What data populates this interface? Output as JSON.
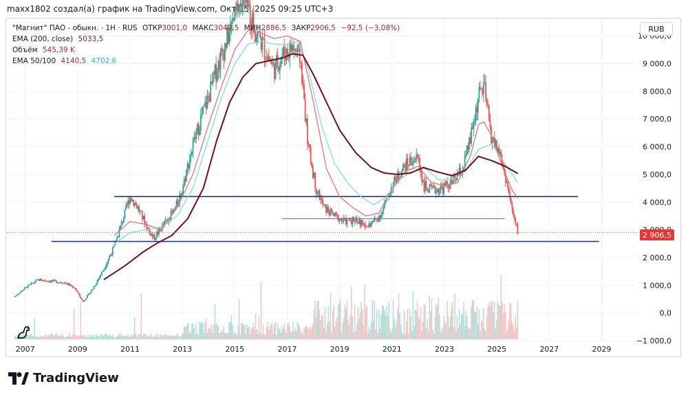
{
  "header": {
    "text": "maxx1802 создал(а) график на TradingView.com, Окт 15, 2025 09:25 UTC+3"
  },
  "legend": {
    "symbol_line": "\"Магнит\" ПАО - обыкн. · 1Н · RUS",
    "open_label": "ОТКР",
    "open_value": "3001,0",
    "high_label": "МАКС",
    "high_value": "3040,5",
    "low_label": "МИН",
    "low_value": "2886,5",
    "close_label": "ЗАКР",
    "close_value": "2906,5",
    "change_value": "−92,5 (−3,08%)",
    "ema200_label": "EMA (200, close)",
    "ema200_value": "5033,5",
    "volume_label": "Объём",
    "volume_value": "545,39 K",
    "ema50100_label": "EMA 50/100",
    "ema50_value": "4140,5",
    "ema100_value": "4702,6"
  },
  "currency_button": "RUB",
  "price_badge": "2 906,5",
  "brand": "TradingView",
  "colors": {
    "up": "#26a69a",
    "down": "#ef5350",
    "ema200": "#6b0f1a",
    "ema50": "#e57373",
    "ema100": "#80deea",
    "trendline": "#1a3a9c",
    "trendline_light": "#5b7fd6"
  },
  "chart_data": {
    "type": "line",
    "x_ticks": [
      "2007",
      "2009",
      "2011",
      "2013",
      "2015",
      "2017",
      "2019",
      "2021",
      "2023",
      "2025",
      "2027",
      "2029"
    ],
    "y_ticks": [
      "10 000,0",
      "9 000,0",
      "8 000,0",
      "7 000,0",
      "6 000,0",
      "5 000,0",
      "4 000,0",
      "3 000,0",
      "2 000,0",
      "1 000,0",
      "0,0",
      "−1 000,0"
    ],
    "ylim": [
      -1000,
      10600
    ],
    "xlim": [
      2006.3,
      2030.3
    ],
    "series": [
      {
        "key": "price",
        "x": [
          2006.6,
          2007.0,
          2007.5,
          2008.0,
          2008.5,
          2008.9,
          2009.2,
          2009.6,
          2010.0,
          2010.4,
          2010.8,
          2011.0,
          2011.3,
          2011.7,
          2011.9,
          2012.3,
          2012.7,
          2013.0,
          2013.3,
          2013.7,
          2014.0,
          2014.3,
          2014.6,
          2014.9,
          2015.2,
          2015.5,
          2015.8,
          2016.2,
          2016.5,
          2016.8,
          2017.2,
          2017.5,
          2017.8,
          2018.1,
          2018.4,
          2018.8,
          2019.2,
          2019.6,
          2020.0,
          2020.3,
          2020.6,
          2021.0,
          2021.4,
          2021.7,
          2022.0,
          2022.2,
          2022.5,
          2022.9,
          2023.3,
          2023.7,
          2024.0,
          2024.3,
          2024.5,
          2024.8,
          2025.1,
          2025.4,
          2025.6,
          2025.8
        ],
        "y": [
          600,
          900,
          1200,
          1150,
          1100,
          900,
          400,
          900,
          1600,
          2400,
          3600,
          4200,
          3800,
          3000,
          2700,
          3200,
          3700,
          4500,
          5700,
          7000,
          7800,
          8800,
          9600,
          10400,
          11200,
          11000,
          10200,
          9400,
          8800,
          9300,
          9600,
          9200,
          6000,
          4500,
          3800,
          3500,
          3300,
          3400,
          3100,
          3300,
          3600,
          4600,
          5200,
          5500,
          5600,
          4600,
          4400,
          4500,
          4700,
          5200,
          6300,
          7800,
          8200,
          6300,
          5800,
          4600,
          3600,
          2906.5
        ]
      },
      {
        "key": "ema200",
        "x": [
          2010.0,
          2010.8,
          2011.5,
          2012.0,
          2012.6,
          2013.2,
          2013.8,
          2014.3,
          2014.8,
          2015.3,
          2015.8,
          2016.3,
          2016.8,
          2017.2,
          2017.6,
          2018.0,
          2018.5,
          2019.0,
          2019.6,
          2020.2,
          2020.7,
          2021.2,
          2021.7,
          2022.2,
          2022.7,
          2023.3,
          2023.8,
          2024.3,
          2024.8,
          2025.3,
          2025.8
        ],
        "y": [
          1200,
          1700,
          2200,
          2500,
          2800,
          3400,
          4500,
          6200,
          7600,
          8500,
          9000,
          9100,
          9200,
          9350,
          9300,
          8600,
          7600,
          6600,
          5800,
          5250,
          5050,
          5000,
          5050,
          5250,
          5100,
          4950,
          5150,
          5650,
          5500,
          5300,
          5033.5
        ]
      },
      {
        "key": "ema100",
        "x": [
          2010.4,
          2011.0,
          2011.6,
          2012.2,
          2012.8,
          2013.4,
          2014.0,
          2014.5,
          2015.0,
          2015.5,
          2016.0,
          2016.5,
          2017.0,
          2017.4,
          2017.8,
          2018.3,
          2018.8,
          2019.3,
          2019.8,
          2020.3,
          2020.8,
          2021.3,
          2021.8,
          2022.3,
          2022.8,
          2023.3,
          2023.8,
          2024.3,
          2024.8,
          2025.3,
          2025.8
        ],
        "y": [
          2500,
          2900,
          3000,
          3100,
          3500,
          4500,
          6300,
          7800,
          9000,
          9700,
          9800,
          9700,
          9700,
          9800,
          8800,
          6800,
          5400,
          4700,
          4200,
          3900,
          4200,
          4800,
          5200,
          5200,
          4800,
          4800,
          5100,
          5900,
          6100,
          5400,
          4702.6
        ]
      },
      {
        "key": "ema50",
        "x": [
          2010.4,
          2011.0,
          2011.6,
          2012.2,
          2012.8,
          2013.4,
          2014.0,
          2014.5,
          2015.0,
          2015.5,
          2016.0,
          2016.5,
          2017.0,
          2017.5,
          2018.0,
          2018.5,
          2019.0,
          2019.5,
          2020.0,
          2020.5,
          2021.0,
          2021.5,
          2022.0,
          2022.5,
          2023.0,
          2023.5,
          2024.0,
          2024.3,
          2024.5,
          2024.8,
          2025.2,
          2025.6,
          2025.8
        ],
        "y": [
          2800,
          3300,
          3200,
          3000,
          3800,
          5000,
          6800,
          8200,
          9500,
          10200,
          10100,
          9900,
          10000,
          9800,
          7600,
          5200,
          4200,
          3800,
          3500,
          3600,
          4500,
          5100,
          5300,
          4700,
          4600,
          4700,
          5700,
          6800,
          6900,
          6400,
          5300,
          4400,
          4140.5
        ]
      }
    ],
    "trendlines": [
      {
        "x": [
          2010.4,
          2028.1
        ],
        "y": [
          4200,
          4200
        ],
        "style": "bold"
      },
      {
        "x": [
          2008.0,
          2028.9
        ],
        "y": [
          2580,
          2580
        ],
        "style": "bold"
      },
      {
        "x": [
          2016.8,
          2025.3
        ],
        "y": [
          3400,
          3400
        ],
        "style": "thin"
      }
    ],
    "last_price": 2906.5
  }
}
